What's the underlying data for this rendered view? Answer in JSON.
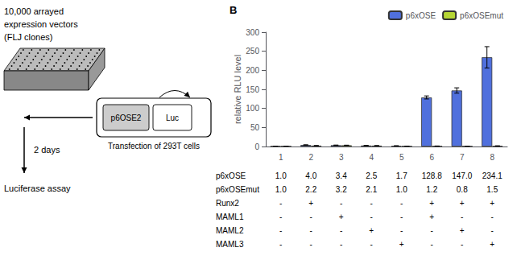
{
  "chart_data": {
    "type": "bar",
    "categories": [
      1,
      2,
      3,
      4,
      5,
      6,
      7,
      8
    ],
    "series": [
      {
        "name": "p6xOSE",
        "values": [
          1.0,
          4.0,
          3.4,
          2.5,
          1.7,
          128.8,
          147.0,
          234.1
        ],
        "errors": [
          0.0,
          0.5,
          0.4,
          0.3,
          0.2,
          4.0,
          7.0,
          28.0
        ]
      },
      {
        "name": "p6xOSEmut",
        "values": [
          1.0,
          2.2,
          3.2,
          2.1,
          1.0,
          1.2,
          0.8,
          1.5
        ],
        "errors": [
          0.0,
          0.3,
          0.3,
          0.2,
          0.1,
          0.2,
          0.15,
          0.3
        ]
      }
    ],
    "ylabel": "relative RLU level",
    "ylim": [
      0,
      300
    ],
    "yticks": [
      0,
      50,
      100,
      150,
      200,
      250,
      300
    ],
    "grid": false,
    "legend": "top",
    "panel_label": "B",
    "table": [
      {
        "name": "p6xOSE",
        "cells": [
          "1.0",
          "4.0",
          "3.4",
          "2.5",
          "1.7",
          "128.8",
          "147.0",
          "234.1"
        ]
      },
      {
        "name": "p6xOSEmut",
        "cells": [
          "1.0",
          "2.2",
          "3.2",
          "2.1",
          "1.0",
          "1.2",
          "0.8",
          "1.5"
        ]
      },
      {
        "name": "Runx2",
        "cells": [
          "-",
          "+",
          "-",
          "-",
          "-",
          "+",
          "+",
          "+"
        ]
      },
      {
        "name": "MAML1",
        "cells": [
          "-",
          "-",
          "+",
          "-",
          "-",
          "+",
          "-",
          "-"
        ]
      },
      {
        "name": "MAML2",
        "cells": [
          "-",
          "-",
          "-",
          "+",
          "-",
          "-",
          "+",
          "-"
        ]
      },
      {
        "name": "MAML3",
        "cells": [
          "-",
          "-",
          "-",
          "-",
          "+",
          "-",
          "-",
          "+"
        ]
      }
    ],
    "diagram": {
      "library": [
        "10,000 arrayed",
        "expression vectors",
        "(FLJ clones)"
      ],
      "construct": [
        "p6OSE2",
        "Luc"
      ],
      "transfection": "Transfection of 293T cells",
      "incubation": "2 days",
      "assay": "Luciferase assay"
    }
  }
}
